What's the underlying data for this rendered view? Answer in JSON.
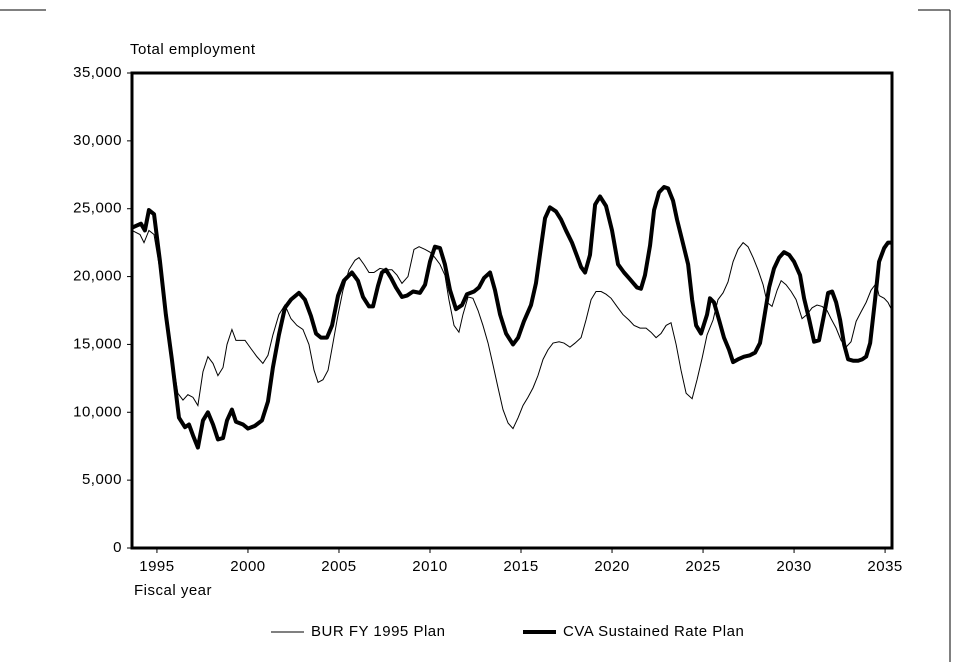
{
  "chart_data": {
    "type": "line",
    "y_label": "Total employment",
    "x_label": "Fiscal year",
    "xlim": [
      1993.63,
      2035.38
    ],
    "xticks": [
      1995,
      2000,
      2005,
      2010,
      2015,
      2020,
      2025,
      2030,
      2035
    ],
    "ylim": [
      0,
      35000
    ],
    "yticks": [
      0,
      {
        "value": 5000,
        "label": "5,000"
      },
      {
        "value": 10000,
        "label": "10,000"
      },
      {
        "value": 15000,
        "label": "15,000"
      },
      {
        "value": 20000,
        "label": "20,000"
      },
      {
        "value": 25000,
        "label": "25,000"
      },
      {
        "value": 30000,
        "label": "30,000"
      },
      {
        "value": 35000,
        "label": "35,000"
      }
    ],
    "grid": false,
    "legend": "bottom",
    "series": [
      {
        "name": "BUR FY 1995 Plan",
        "color": "#000000",
        "x": [
          1993.63,
          1994.07,
          1994.29,
          1994.56,
          1994.84,
          1995.16,
          1995.49,
          1995.82,
          1996.15,
          1996.43,
          1996.7,
          1996.98,
          1997.25,
          1997.53,
          1997.8,
          1998.08,
          1998.35,
          1998.63,
          1998.85,
          1999.12,
          1999.34,
          1999.84,
          2000.16,
          2000.49,
          2000.82,
          2001.1,
          2001.37,
          2001.7,
          2002.03,
          2002.36,
          2002.69,
          2003.02,
          2003.35,
          2003.63,
          2003.85,
          2004.12,
          2004.4,
          2004.67,
          2004.95,
          2005.22,
          2005.55,
          2005.88,
          2006.1,
          2006.37,
          2006.65,
          2006.92,
          2007.25,
          2007.58,
          2007.91,
          2008.19,
          2008.46,
          2008.79,
          2009.12,
          2009.4,
          2009.73,
          2010.0,
          2010.27,
          2010.55,
          2010.82,
          2011.04,
          2011.32,
          2011.59,
          2011.81,
          2012.09,
          2012.36,
          2012.64,
          2012.91,
          2013.19,
          2013.46,
          2013.74,
          2014.01,
          2014.29,
          2014.56,
          2014.84,
          2015.11,
          2015.38,
          2015.66,
          2015.93,
          2016.21,
          2016.48,
          2016.76,
          2017.09,
          2017.36,
          2017.69,
          2017.97,
          2018.3,
          2018.57,
          2018.85,
          2019.12,
          2019.4,
          2019.67,
          2019.95,
          2020.27,
          2020.6,
          2020.93,
          2021.21,
          2021.54,
          2021.87,
          2022.14,
          2022.42,
          2022.69,
          2022.97,
          2023.24,
          2023.52,
          2023.79,
          2024.07,
          2024.4,
          2024.67,
          2024.95,
          2025.22,
          2025.55,
          2025.82,
          2026.1,
          2026.37,
          2026.65,
          2026.92,
          2027.2,
          2027.47,
          2027.75,
          2028.02,
          2028.3,
          2028.52,
          2028.79,
          2029.07,
          2029.29,
          2029.56,
          2029.84,
          2030.11,
          2030.44,
          2030.71,
          2030.99,
          2031.26,
          2031.54,
          2031.81,
          2032.03,
          2032.31,
          2032.58,
          2032.86,
          2033.13,
          2033.41,
          2033.68,
          2033.96,
          2034.23,
          2034.51,
          2034.67,
          2034.95,
          2035.16,
          2035.38
        ],
        "values": [
          23400,
          23100,
          22500,
          23400,
          23100,
          20500,
          17200,
          14200,
          11400,
          10900,
          11300,
          11100,
          10500,
          13000,
          14100,
          13600,
          12700,
          13300,
          15000,
          16100,
          15300,
          15300,
          14700,
          14100,
          13600,
          14200,
          15700,
          17200,
          17900,
          16900,
          16400,
          16100,
          15000,
          13100,
          12200,
          12400,
          13100,
          15100,
          17200,
          19000,
          20500,
          21200,
          21400,
          20900,
          20300,
          20300,
          20600,
          20500,
          20500,
          20100,
          19500,
          20000,
          22000,
          22200,
          22000,
          21800,
          21400,
          20900,
          20100,
          18300,
          16400,
          15900,
          17200,
          18500,
          18400,
          17500,
          16400,
          15100,
          13500,
          11800,
          10200,
          9200,
          8800,
          9600,
          10500,
          11100,
          11800,
          12700,
          13900,
          14600,
          15100,
          15200,
          15100,
          14800,
          15100,
          15500,
          16800,
          18300,
          18900,
          18900,
          18700,
          18400,
          17800,
          17200,
          16800,
          16400,
          16200,
          16200,
          15900,
          15500,
          15800,
          16400,
          16600,
          15000,
          13100,
          11400,
          11000,
          12400,
          14000,
          15700,
          16800,
          18300,
          18800,
          19600,
          21100,
          22000,
          22500,
          22200,
          21400,
          20500,
          19400,
          18100,
          17800,
          19000,
          19700,
          19400,
          18900,
          18300,
          16900,
          17200,
          17700,
          17900,
          17800,
          17500,
          16900,
          16200,
          15300,
          14800,
          15200,
          16700,
          17400,
          18100,
          19000,
          19500,
          18600,
          18400,
          18100,
          17500
        ]
      },
      {
        "name": "CVA Sustained Rate Plan",
        "color": "#000000",
        "x": [
          1993.63,
          1994.12,
          1994.34,
          1994.56,
          1994.84,
          1995.16,
          1995.49,
          1995.82,
          1996.21,
          1996.54,
          1996.76,
          1996.98,
          1997.25,
          1997.53,
          1997.8,
          1998.08,
          1998.35,
          1998.63,
          1998.85,
          1999.12,
          1999.34,
          1999.73,
          2000.0,
          2000.38,
          2000.77,
          2001.1,
          2001.37,
          2001.7,
          2002.03,
          2002.36,
          2002.8,
          2003.13,
          2003.46,
          2003.74,
          2004.01,
          2004.34,
          2004.62,
          2004.95,
          2005.27,
          2005.71,
          2006.04,
          2006.32,
          2006.65,
          2006.87,
          2007.14,
          2007.36,
          2007.58,
          2007.86,
          2008.13,
          2008.46,
          2008.74,
          2009.07,
          2009.45,
          2009.73,
          2010.0,
          2010.27,
          2010.55,
          2010.82,
          2011.1,
          2011.43,
          2011.76,
          2012.03,
          2012.42,
          2012.69,
          2012.97,
          2013.3,
          2013.57,
          2013.85,
          2014.18,
          2014.56,
          2014.84,
          2015.16,
          2015.55,
          2015.82,
          2016.1,
          2016.32,
          2016.59,
          2016.92,
          2017.2,
          2017.47,
          2017.8,
          2018.08,
          2018.3,
          2018.52,
          2018.79,
          2019.07,
          2019.34,
          2019.67,
          2020.0,
          2020.33,
          2020.66,
          2020.99,
          2021.37,
          2021.59,
          2021.81,
          2022.09,
          2022.31,
          2022.58,
          2022.86,
          2023.08,
          2023.35,
          2023.57,
          2023.85,
          2024.18,
          2024.4,
          2024.62,
          2024.89,
          2025.22,
          2025.38,
          2025.6,
          2025.88,
          2026.15,
          2026.43,
          2026.65,
          2026.92,
          2027.25,
          2027.58,
          2027.86,
          2028.13,
          2028.35,
          2028.63,
          2028.9,
          2029.18,
          2029.45,
          2029.73,
          2030.0,
          2030.33,
          2030.55,
          2030.82,
          2031.1,
          2031.37,
          2031.65,
          2031.87,
          2032.09,
          2032.31,
          2032.53,
          2032.75,
          2032.97,
          2033.24,
          2033.52,
          2033.74,
          2033.96,
          2034.18,
          2034.45,
          2034.67,
          2034.95,
          2035.16,
          2035.38
        ],
        "values": [
          23600,
          23900,
          23400,
          24900,
          24600,
          21200,
          17200,
          13900,
          9600,
          8900,
          9100,
          8300,
          7400,
          9400,
          10000,
          9100,
          8000,
          8100,
          9400,
          10200,
          9300,
          9100,
          8800,
          9000,
          9400,
          10800,
          13300,
          15700,
          17700,
          18300,
          18800,
          18300,
          17100,
          15800,
          15500,
          15500,
          16400,
          18600,
          19700,
          20300,
          19700,
          18500,
          17800,
          17800,
          19300,
          20300,
          20500,
          19900,
          19200,
          18500,
          18600,
          18900,
          18800,
          19400,
          21100,
          22200,
          22100,
          20900,
          19000,
          17600,
          17900,
          18700,
          18900,
          19200,
          19900,
          20300,
          19000,
          17200,
          15800,
          15000,
          15500,
          16700,
          17900,
          19500,
          22200,
          24300,
          25100,
          24800,
          24200,
          23400,
          22500,
          21500,
          20700,
          20300,
          21600,
          25300,
          25900,
          25200,
          23400,
          20900,
          20300,
          19800,
          19200,
          19100,
          20100,
          22300,
          24900,
          26200,
          26600,
          26500,
          25600,
          24200,
          22700,
          20900,
          18300,
          16400,
          15800,
          17200,
          18400,
          18100,
          16800,
          15500,
          14600,
          13700,
          13900,
          14100,
          14200,
          14400,
          15100,
          16900,
          19200,
          20600,
          21400,
          21800,
          21600,
          21100,
          20100,
          18400,
          16900,
          15200,
          15300,
          17200,
          18800,
          18900,
          18100,
          16800,
          15000,
          13900,
          13800,
          13800,
          13900,
          14100,
          15100,
          18300,
          21100,
          22100,
          22500,
          22500
        ]
      }
    ]
  }
}
